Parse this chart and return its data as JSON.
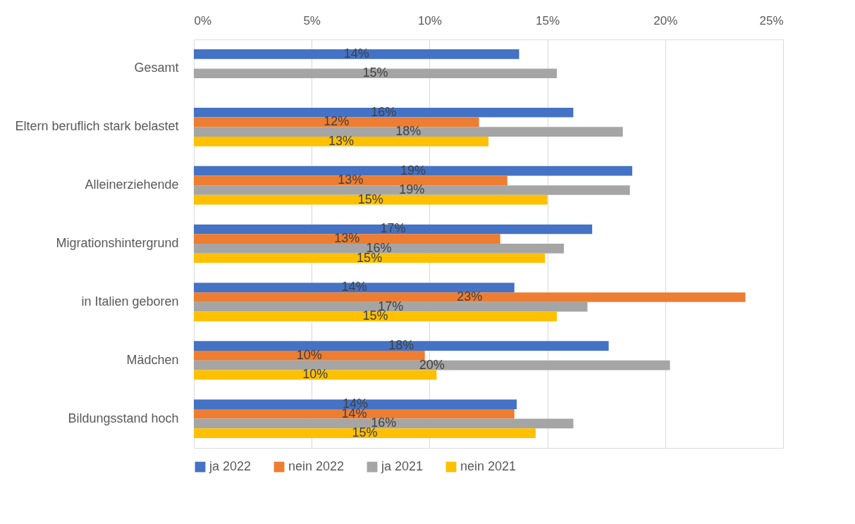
{
  "chart_data": {
    "type": "bar",
    "orientation": "horizontal",
    "categories": [
      "Gesamt",
      "Eltern beruflich stark belastet",
      "Alleinerziehende",
      "Migrationshintergrund",
      "in Italien geboren",
      "Mädchen",
      "Bildungsstand hoch"
    ],
    "series": [
      {
        "name": "ja 2022",
        "color": "#4472c4",
        "values": [
          13.8,
          16.1,
          18.6,
          16.9,
          13.6,
          17.6,
          13.7
        ],
        "value_labels": [
          "14%",
          "16%",
          "19%",
          "17%",
          "14%",
          "18%",
          "14%"
        ]
      },
      {
        "name": "nein 2022",
        "color": "#ed7d31",
        "values": [
          null,
          12.1,
          13.3,
          13.0,
          23.4,
          9.8,
          13.6
        ],
        "value_labels": [
          null,
          "12%",
          "13%",
          "13%",
          "23%",
          "10%",
          "14%"
        ]
      },
      {
        "name": "ja 2021",
        "color": "#a5a5a5",
        "values": [
          15.4,
          18.2,
          18.5,
          15.7,
          16.7,
          20.2,
          16.1
        ],
        "value_labels": [
          "15%",
          "18%",
          "19%",
          "16%",
          "17%",
          "20%",
          "16%"
        ]
      },
      {
        "name": "nein 2021",
        "color": "#ffc000",
        "values": [
          null,
          12.5,
          15.0,
          14.9,
          15.4,
          10.3,
          14.5
        ],
        "value_labels": [
          null,
          "13%",
          "15%",
          "15%",
          "15%",
          "10%",
          "15%"
        ]
      }
    ],
    "xlim": [
      0,
      25
    ],
    "xticks": [
      {
        "value": 0,
        "label": "0%"
      },
      {
        "value": 5,
        "label": "5%"
      },
      {
        "value": 10,
        "label": "10%"
      },
      {
        "value": 15,
        "label": "15%"
      },
      {
        "value": 20,
        "label": "20%"
      },
      {
        "value": 25,
        "label": "25%"
      }
    ],
    "grid": "x",
    "legend": "bottom"
  }
}
